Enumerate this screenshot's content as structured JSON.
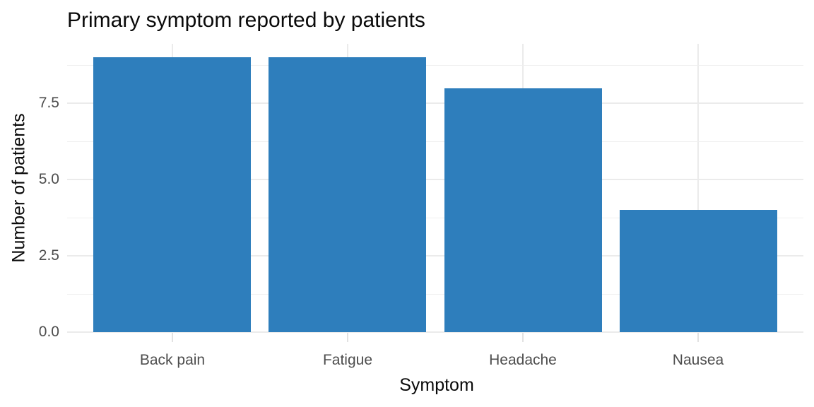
{
  "chart_data": {
    "type": "bar",
    "title": "Primary symptom reported by patients",
    "xlabel": "Symptom",
    "ylabel": "Number of patients",
    "categories": [
      "Back pain",
      "Fatigue",
      "Headache",
      "Nausea"
    ],
    "values": [
      9,
      9,
      8,
      4
    ],
    "ylim": [
      0,
      9.45
    ],
    "yticks": [
      0,
      2.5,
      5,
      7.5
    ],
    "ytick_labels": [
      "0.0",
      "2.5",
      "5.0",
      "7.5"
    ],
    "yticks_minor": [
      1.25,
      3.75,
      6.25,
      8.75
    ],
    "grid": "horizontal major+minor, vertical at category centers",
    "legend": "none",
    "colors": {
      "bar_fill": "#2e7ebc",
      "background": "#ffffff",
      "grid_major": "#ebebeb",
      "grid_minor": "#efefef",
      "tick_mark": "#e2e2e2",
      "tick_text": "#4d4d4d",
      "title_text": "#0a0a0a"
    }
  }
}
